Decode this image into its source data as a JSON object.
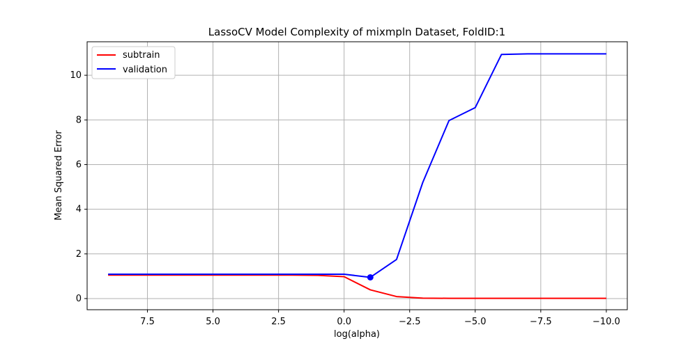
{
  "chart_data": {
    "type": "line",
    "title": "LassoCV Model Complexity of mixmpln Dataset, FoldID:1",
    "xlabel": "log(alpha)",
    "ylabel": "Mean Squared Error",
    "x_inverted": true,
    "xlim": [
      9.8,
      -10.8
    ],
    "ylim": [
      -0.5,
      11.5
    ],
    "x_ticks": [
      7.5,
      5.0,
      2.5,
      0.0,
      -2.5,
      -5.0,
      -7.5,
      -10.0
    ],
    "x_tick_labels": [
      "7.5",
      "5.0",
      "2.5",
      "0.0",
      "−2.5",
      "−5.0",
      "−7.5",
      "−10.0"
    ],
    "y_ticks": [
      0,
      2,
      4,
      6,
      8,
      10
    ],
    "y_tick_labels": [
      "0",
      "2",
      "4",
      "6",
      "8",
      "10"
    ],
    "grid": true,
    "legend_position": "top-left",
    "series": [
      {
        "name": "subtrain",
        "color": "#ff0000",
        "x": [
          9,
          8,
          7,
          6,
          5,
          4,
          3,
          2,
          1,
          0,
          -1,
          -2,
          -3,
          -4,
          -5,
          -6,
          -7,
          -8,
          -9,
          -10
        ],
        "y": [
          1.05,
          1.05,
          1.05,
          1.05,
          1.05,
          1.05,
          1.05,
          1.05,
          1.04,
          0.98,
          0.39,
          0.09,
          0.02,
          0.01,
          0.01,
          0.01,
          0.01,
          0.01,
          0.01,
          0.01
        ]
      },
      {
        "name": "validation",
        "color": "#0000ff",
        "x": [
          9,
          8,
          7,
          6,
          5,
          4,
          3,
          2,
          1,
          0,
          -1,
          -2,
          -3,
          -4,
          -5,
          -6,
          -7,
          -8,
          -9,
          -10
        ],
        "y": [
          1.09,
          1.09,
          1.09,
          1.09,
          1.09,
          1.09,
          1.09,
          1.09,
          1.09,
          1.09,
          0.95,
          1.75,
          5.2,
          7.97,
          8.55,
          10.93,
          10.96,
          10.96,
          10.96,
          10.96
        ]
      }
    ],
    "highlight_point": {
      "series": "validation",
      "x": -1,
      "y": 0.95,
      "color": "#0000ff"
    }
  }
}
